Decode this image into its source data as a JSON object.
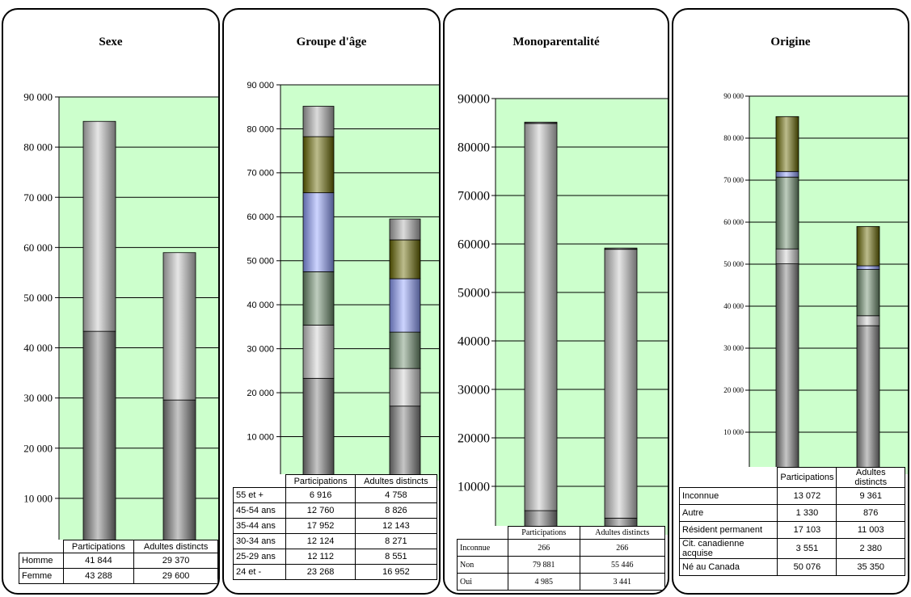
{
  "colors": {
    "plot_bg": "#ccffcc",
    "grid": "#000000"
  },
  "chart_data": [
    {
      "type": "bar",
      "title": "Sexe",
      "categories": [
        "Participations",
        "Adultes distincts"
      ],
      "ylim": [
        0,
        90000
      ],
      "ticks": [
        "0",
        "10 000",
        "20 000",
        "30 000",
        "40 000",
        "50 000",
        "60 000",
        "70 000",
        "80 000",
        "90 000"
      ],
      "series": [
        {
          "name": "Femme",
          "values": [
            43288,
            29600
          ],
          "display": [
            "43 288",
            "29 600"
          ],
          "color": "#808080"
        },
        {
          "name": "Homme",
          "values": [
            41844,
            29370
          ],
          "display": [
            "41 844",
            "29 370"
          ],
          "color": "#c8c8c8"
        }
      ],
      "table_order": [
        "Homme",
        "Femme"
      ]
    },
    {
      "type": "bar",
      "title": "Groupe d'âge",
      "categories": [
        "Participations",
        "Adultes distincts"
      ],
      "ylim": [
        0,
        90000
      ],
      "ticks": [
        "0",
        "10 000",
        "20 000",
        "30 000",
        "40 000",
        "50 000",
        "60 000",
        "70 000",
        "80 000",
        "90 000"
      ],
      "series": [
        {
          "name": "24 et -",
          "values": [
            23268,
            16952
          ],
          "display": [
            "23 268",
            "16 952"
          ],
          "color": "#808080"
        },
        {
          "name": "25-29 ans",
          "values": [
            12112,
            8551
          ],
          "display": [
            "12 112",
            "8 551"
          ],
          "color": "#d0d0d0"
        },
        {
          "name": "30-34 ans",
          "values": [
            12124,
            8271
          ],
          "display": [
            "12 124",
            "8 271"
          ],
          "color": "#6f8f6f"
        },
        {
          "name": "35-44 ans",
          "values": [
            17952,
            12143
          ],
          "display": [
            "17 952",
            "12 143"
          ],
          "color": "#8fa0ff"
        },
        {
          "name": "45-54 ans",
          "values": [
            12760,
            8826
          ],
          "display": [
            "12 760",
            "8 826"
          ],
          "color": "#6b6b00"
        },
        {
          "name": "55 et +",
          "values": [
            6916,
            4758
          ],
          "display": [
            "6 916",
            "4 758"
          ],
          "color": "#b0b0b0"
        }
      ],
      "table_order": [
        "55 et +",
        "45-54 ans",
        "35-44 ans",
        "30-34 ans",
        "25-29 ans",
        "24 et -"
      ]
    },
    {
      "type": "bar",
      "title": "Monoparentalité",
      "categories": [
        "Participations",
        "Adultes distincts"
      ],
      "ylim": [
        0,
        90000
      ],
      "ticks": [
        "0",
        "10000",
        "20000",
        "30000",
        "40000",
        "50000",
        "60000",
        "70000",
        "80000",
        "90000"
      ],
      "series": [
        {
          "name": "Oui",
          "values": [
            4985,
            3441
          ],
          "display": [
            "4 985",
            "3 441"
          ],
          "color": "#808080"
        },
        {
          "name": "Non",
          "values": [
            79881,
            55446
          ],
          "display": [
            "79 881",
            "55 446"
          ],
          "color": "#c8c8c8"
        },
        {
          "name": "Inconnue",
          "values": [
            266,
            266
          ],
          "display": [
            "266",
            "266"
          ],
          "color": "#606060"
        }
      ],
      "table_order": [
        "Inconnue",
        "Non",
        "Oui"
      ]
    },
    {
      "type": "bar",
      "title": "Origine",
      "categories": [
        "Participations",
        "Adultes distincts"
      ],
      "ylim": [
        0,
        90000
      ],
      "ticks": [
        "0",
        "10 000",
        "20 000",
        "30 000",
        "40 000",
        "50 000",
        "60 000",
        "70 000",
        "80 000",
        "90 000"
      ],
      "series": [
        {
          "name": "Né au Canada",
          "values": [
            50076,
            35350
          ],
          "display": [
            "50 076",
            "35 350"
          ],
          "color": "#808080"
        },
        {
          "name": "Cit. canadienne acquise",
          "values": [
            3551,
            2380
          ],
          "display": [
            "3 551",
            "2 380"
          ],
          "color": "#d0d0d0"
        },
        {
          "name": "Résident permanent",
          "values": [
            17103,
            11003
          ],
          "display": [
            "17 103",
            "11 003"
          ],
          "color": "#6f8f6f"
        },
        {
          "name": "Autre",
          "values": [
            1330,
            876
          ],
          "display": [
            "1 330",
            "876"
          ],
          "color": "#8fa0ff"
        },
        {
          "name": "Inconnue",
          "values": [
            13072,
            9361
          ],
          "display": [
            "13 072",
            "9 361"
          ],
          "color": "#6b6b00"
        }
      ],
      "table_order": [
        "Inconnue",
        "Autre",
        "Résident permanent",
        "Cit. canadienne acquise",
        "Né au Canada"
      ]
    }
  ]
}
